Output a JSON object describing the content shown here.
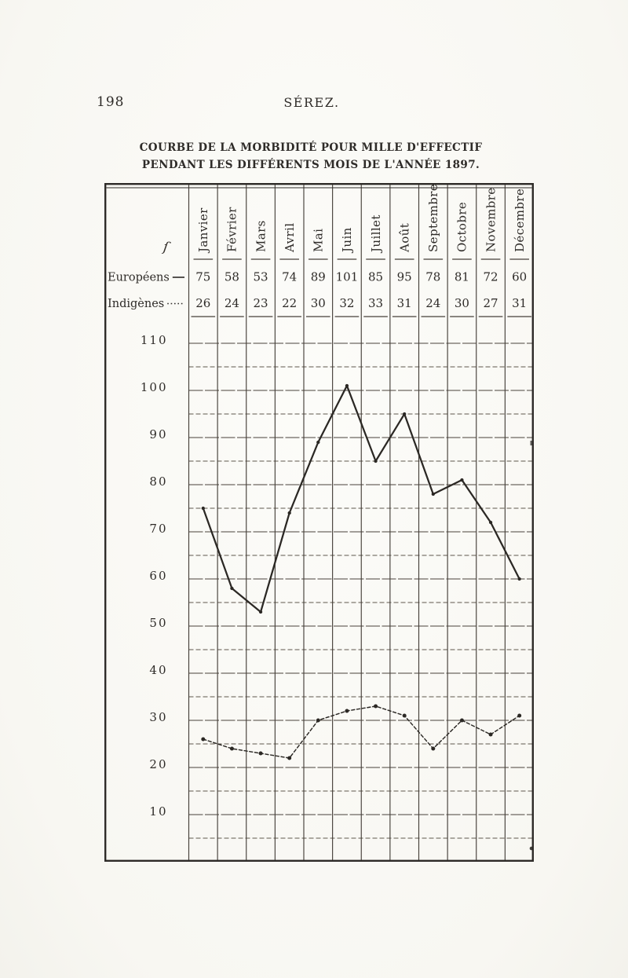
{
  "page": {
    "number": "198",
    "running_head": "SÉREZ.",
    "title_line1": "COURBE DE LA MORBIDITÉ POUR MILLE D'EFFECTIF",
    "title_line2": "PENDANT LES DIFFÉRENTS MOIS DE L'ANNÉE 1897.",
    "corner_mark": "ſ"
  },
  "chart_data": {
    "type": "line",
    "title": "Courbe de la morbidité pour mille d'effectif pendant les différents mois de l'année 1897",
    "categories": [
      "Janvier",
      "Février",
      "Mars",
      "Avril",
      "Mai",
      "Juin",
      "Juillet",
      "Août",
      "Septembre",
      "Octobre",
      "Novembre",
      "Décembre"
    ],
    "series": [
      {
        "name": "Européens",
        "line_style": "solid",
        "values": [
          75,
          58,
          53,
          74,
          89,
          101,
          85,
          95,
          78,
          81,
          72,
          60
        ]
      },
      {
        "name": "Indigènes",
        "line_style": "dotted",
        "values": [
          26,
          24,
          23,
          22,
          30,
          32,
          33,
          31,
          24,
          30,
          27,
          31
        ]
      }
    ],
    "y_ticks": [
      110,
      100,
      90,
      80,
      70,
      60,
      50,
      40,
      30,
      20,
      10
    ],
    "ylim": [
      0,
      115
    ],
    "y_minor_step": 5,
    "grid": true,
    "legend_position": "left-table-column",
    "ink_color": "#2e2b28",
    "paper_color": "#fbfaf7"
  }
}
